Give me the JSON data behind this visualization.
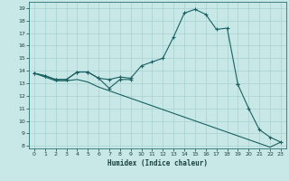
{
  "xlabel": "Humidex (Indice chaleur)",
  "x": [
    0,
    1,
    2,
    3,
    4,
    5,
    6,
    7,
    8,
    9,
    10,
    11,
    12,
    13,
    14,
    15,
    16,
    17,
    18,
    19,
    20,
    21,
    22,
    23
  ],
  "line1_x": [
    0,
    1,
    2,
    3,
    4,
    5,
    6,
    7,
    8,
    9,
    10,
    11,
    12,
    13,
    14,
    15,
    16,
    17,
    18,
    19
  ],
  "line1_y": [
    13.8,
    13.6,
    13.3,
    13.3,
    13.9,
    13.9,
    13.4,
    13.3,
    13.5,
    13.4,
    14.4,
    14.7,
    15.0,
    16.7,
    18.6,
    18.9,
    18.5,
    17.3,
    17.4,
    12.9
  ],
  "line2a_x": [
    0,
    1,
    2,
    3,
    4,
    5,
    6,
    7,
    8,
    9
  ],
  "line2a_y": [
    13.8,
    13.6,
    13.3,
    13.3,
    13.9,
    13.9,
    13.4,
    12.6,
    13.3,
    13.3
  ],
  "line2b_x": [
    19,
    20,
    21,
    22,
    23
  ],
  "line2b_y": [
    12.9,
    11.0,
    9.3,
    8.7,
    8.3
  ],
  "line3_x": [
    0,
    1,
    2,
    3,
    4,
    5,
    6,
    7,
    8,
    9,
    10,
    11,
    12,
    13,
    14,
    15,
    16,
    17,
    18,
    19,
    20,
    21,
    22,
    23
  ],
  "line3_y": [
    13.8,
    13.5,
    13.2,
    13.2,
    13.3,
    13.1,
    12.7,
    12.4,
    12.1,
    11.8,
    11.5,
    11.2,
    10.9,
    10.6,
    10.3,
    10.0,
    9.7,
    9.4,
    9.1,
    8.8,
    8.5,
    8.2,
    7.9,
    8.3
  ],
  "bg_color": "#c8e8e8",
  "grid_color": "#a8d0d0",
  "line_color": "#1a6060",
  "ylim": [
    7.8,
    19.5
  ],
  "xlim": [
    -0.5,
    23.5
  ],
  "yticks": [
    8,
    9,
    10,
    11,
    12,
    13,
    14,
    15,
    16,
    17,
    18,
    19
  ],
  "xticks": [
    0,
    1,
    2,
    3,
    4,
    5,
    6,
    7,
    8,
    9,
    10,
    11,
    12,
    13,
    14,
    15,
    16,
    17,
    18,
    19,
    20,
    21,
    22,
    23
  ]
}
